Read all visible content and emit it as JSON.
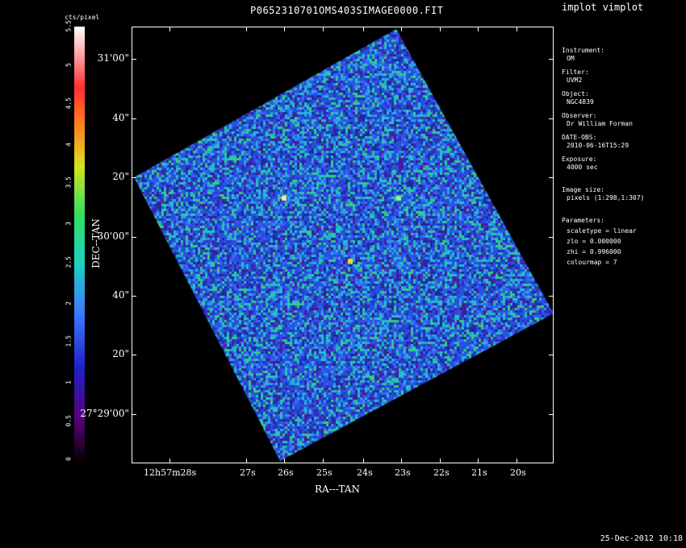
{
  "window": {
    "title": "P0652310701OMS403SIMAGE0000.FIT",
    "app_title": "implot vimplot",
    "date": "25-Dec-2012 10:18"
  },
  "colorbar": {
    "label": "cts/pixel",
    "ticks": [
      "0",
      "0.5",
      "1",
      "1.5",
      "2",
      "2.5",
      "3",
      "3.5",
      "4",
      "4.5",
      "5",
      "5.5"
    ],
    "range": [
      0,
      5.5
    ]
  },
  "axes": {
    "xlabel": "RA---TAN",
    "ylabel": "DEC--TAN",
    "x_ticks": [
      "12h57m28s",
      "27s",
      "26s",
      "25s",
      "24s",
      "23s",
      "22s",
      "21s",
      "20s"
    ],
    "y_ticks": [
      "31'00\"",
      "40\"",
      "20\"",
      "30'00\"",
      "40\"",
      "20\"",
      "27°29'00\""
    ]
  },
  "info": {
    "instrument_label": "Instrument:",
    "instrument": "OM",
    "filter_label": "Filter:",
    "filter": "UVM2",
    "object_label": "Object:",
    "object": "NGC4839",
    "observer_label": "Observer:",
    "observer": "Dr William Forman",
    "date_obs_label": "DATE-OBS:",
    "date_obs": "2010-06-16T15:29",
    "exposure_label": "Exposure:",
    "exposure": "4000 sec",
    "image_size_label": "Image size:",
    "image_size": "pixels (1:298,1:307)",
    "parameters_label": "Parameters:",
    "scaletype": "scaletype = linear",
    "zlo": "zlo = 0.000000",
    "zhi": "zhi = 0.996000",
    "colourmap": "colourmap = 7"
  },
  "colors": {
    "background": "#000000",
    "image_base": "#2a4fe0",
    "noise_green": "#30d080",
    "noise_purple": "#4a1aa0",
    "noise_cyan": "#20c0d0"
  }
}
